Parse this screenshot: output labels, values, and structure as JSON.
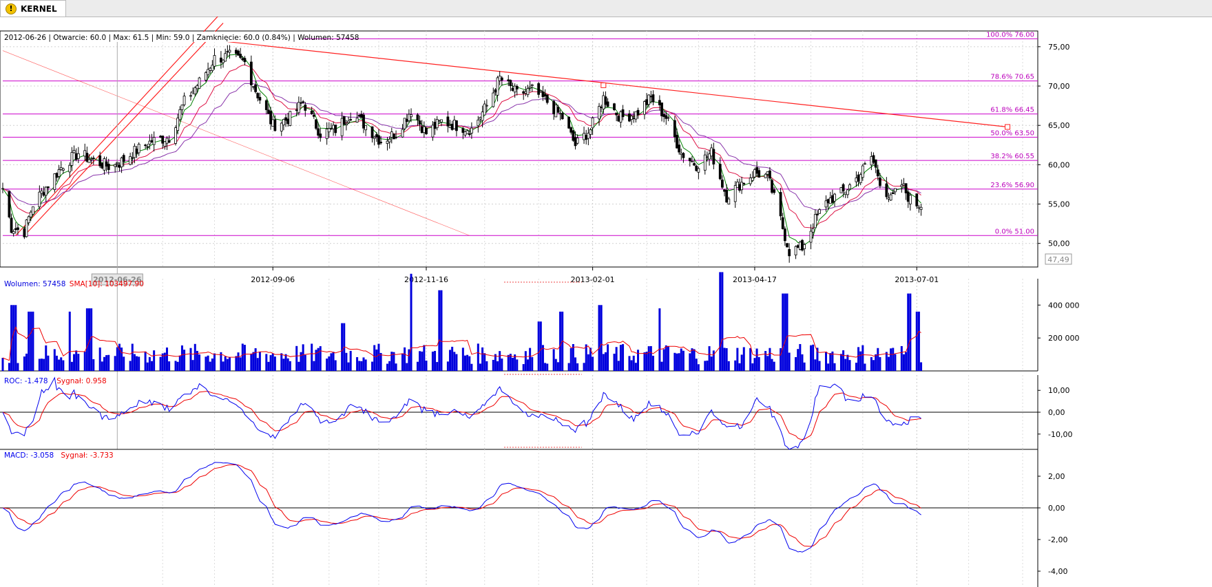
{
  "tab": {
    "title": "KERNEL",
    "icon": "warning-icon"
  },
  "colors": {
    "candle": "#000000",
    "fib_line": "#cc00cc",
    "fib_text": "#bb00bb",
    "trend_line": "#ff2020",
    "ema_short": "#008000",
    "ema_mid": "#dd1144",
    "ema_long": "#8833aa",
    "volume_bar": "#0000dd",
    "volume_sma": "#ee0000",
    "roc": "#0000ee",
    "roc_signal": "#ee0000",
    "macd": "#0000ee",
    "macd_signal": "#ee0000"
  },
  "chart_data": [
    {
      "type": "candlestick",
      "name": "price",
      "info": "2012-06-26 | Otwarcie: 60.0 | Max: 61.5 | Min: 59.0 | Zamknięcie: 60.0 (0.84%)  | Wolumen: 57458",
      "ylim": [
        47,
        77
      ],
      "yticks": [
        50,
        55,
        60,
        65,
        70,
        75
      ],
      "ytick_labels": [
        "50,00",
        "55,00",
        "60,00",
        "65,00",
        "70,00",
        "75,00"
      ],
      "last_price_label": "47,49",
      "x_range_days": [
        "2012-05-04",
        "2013-08-26"
      ],
      "date_labels": [
        {
          "date": "2012-09-06",
          "label": "2012-09-06"
        },
        {
          "date": "2012-11-16",
          "label": "2012-11-16"
        },
        {
          "date": "2013-02-01",
          "label": "2013-02-01"
        },
        {
          "date": "2013-04-17",
          "label": "2013-04-17"
        },
        {
          "date": "2013-07-01",
          "label": "2013-07-01"
        }
      ],
      "cursor": {
        "date": "2012-06-26",
        "label": "2012-06-26"
      },
      "fib_levels": [
        {
          "label": "100.0% 76.00",
          "value": 76.0
        },
        {
          "label": "78.6% 70.65",
          "value": 70.65
        },
        {
          "label": "61.8% 66.45",
          "value": 66.45
        },
        {
          "label": "50.0% 63.50",
          "value": 63.5
        },
        {
          "label": "38.2% 60.55",
          "value": 60.55
        },
        {
          "label": "23.6% 56.90",
          "value": 56.9
        },
        {
          "label": "0.0% 51.00",
          "value": 51.0
        }
      ],
      "trend_lines": [
        {
          "from": [
            "2012-05-10",
            51.0
          ],
          "to": [
            "2012-08-12",
            79.0
          ],
          "style": "solid"
        },
        {
          "from": [
            "2012-05-14",
            51.0
          ],
          "to": [
            "2012-08-14",
            78.0
          ],
          "style": "solid"
        },
        {
          "from": [
            "2012-08-04",
            76.0
          ],
          "to": [
            "2013-08-12",
            64.8
          ],
          "style": "solid",
          "handles": true
        },
        {
          "from": [
            "2012-05-04",
            74.5
          ],
          "to": [
            "2012-12-06",
            51.0
          ],
          "style": "thin"
        }
      ],
      "handle_points": [
        [
          "2012-08-04",
          76.0
        ],
        [
          "2013-02-06",
          70.1
        ],
        [
          "2013-08-12",
          64.8
        ]
      ],
      "path_points": [
        [
          "2012-05-04",
          57.0
        ],
        [
          "2012-05-08",
          52.0
        ],
        [
          "2012-05-14",
          51.5
        ],
        [
          "2012-05-18",
          55.0
        ],
        [
          "2012-05-25",
          57.5
        ],
        [
          "2012-06-01",
          60.0
        ],
        [
          "2012-06-08",
          61.5
        ],
        [
          "2012-06-15",
          60.5
        ],
        [
          "2012-06-22",
          59.8
        ],
        [
          "2012-06-26",
          60.0
        ],
        [
          "2012-07-03",
          61.5
        ],
        [
          "2012-07-12",
          63.0
        ],
        [
          "2012-07-20",
          63.5
        ],
        [
          "2012-07-27",
          68.0
        ],
        [
          "2012-08-03",
          70.5
        ],
        [
          "2012-08-10",
          73.5
        ],
        [
          "2012-08-17",
          73.8
        ],
        [
          "2012-08-24",
          73.0
        ],
        [
          "2012-08-29",
          69.5
        ],
        [
          "2012-09-06",
          65.0
        ],
        [
          "2012-09-14",
          66.0
        ],
        [
          "2012-09-20",
          68.0
        ],
        [
          "2012-09-28",
          64.0
        ],
        [
          "2012-10-05",
          64.5
        ],
        [
          "2012-10-12",
          66.5
        ],
        [
          "2012-10-19",
          65.0
        ],
        [
          "2012-10-26",
          63.0
        ],
        [
          "2012-11-02",
          64.0
        ],
        [
          "2012-11-09",
          67.0
        ],
        [
          "2012-11-16",
          64.0
        ],
        [
          "2012-11-23",
          65.5
        ],
        [
          "2012-11-30",
          65.0
        ],
        [
          "2012-12-07",
          64.5
        ],
        [
          "2012-12-14",
          67.5
        ],
        [
          "2012-12-20",
          71.0
        ],
        [
          "2012-12-28",
          69.0
        ],
        [
          "2013-01-04",
          69.5
        ],
        [
          "2013-01-11",
          68.0
        ],
        [
          "2013-01-18",
          66.0
        ],
        [
          "2013-01-24",
          62.5
        ],
        [
          "2013-01-31",
          64.5
        ],
        [
          "2013-02-06",
          68.5
        ],
        [
          "2013-02-14",
          66.0
        ],
        [
          "2013-02-21",
          66.5
        ],
        [
          "2013-02-28",
          68.5
        ],
        [
          "2013-03-07",
          66.0
        ],
        [
          "2013-03-14",
          61.5
        ],
        [
          "2013-03-21",
          60.0
        ],
        [
          "2013-03-28",
          61.5
        ],
        [
          "2013-04-04",
          56.0
        ],
        [
          "2013-04-10",
          57.5
        ],
        [
          "2013-04-17",
          59.0
        ],
        [
          "2013-04-23",
          58.5
        ],
        [
          "2013-04-29",
          53.0
        ],
        [
          "2013-05-03",
          49.0
        ],
        [
          "2013-05-09",
          49.5
        ],
        [
          "2013-05-15",
          53.0
        ],
        [
          "2013-05-21",
          55.5
        ],
        [
          "2013-05-28",
          56.5
        ],
        [
          "2013-06-04",
          58.5
        ],
        [
          "2013-06-10",
          61.0
        ],
        [
          "2013-06-14",
          58.0
        ],
        [
          "2013-06-19",
          55.5
        ],
        [
          "2013-06-24",
          57.5
        ],
        [
          "2013-06-28",
          55.5
        ],
        [
          "2013-07-01",
          55.0
        ]
      ]
    },
    {
      "type": "bar",
      "name": "volume",
      "legend": [
        {
          "label": "Wolumen: 57458",
          "color": "#0000dd"
        },
        {
          "label": "SMA[10]: 103497.90",
          "color": "#ee0000"
        }
      ],
      "ylim": [
        0,
        560000
      ],
      "yticks": [
        200000,
        400000
      ],
      "ytick_labels": [
        "200 000",
        "400 000"
      ],
      "base_level": 90000,
      "spikes": [
        [
          "2012-05-09",
          400000
        ],
        [
          "2012-05-17",
          360000
        ],
        [
          "2012-06-03",
          360000
        ],
        [
          "2012-06-13",
          380000
        ],
        [
          "2012-10-08",
          290000
        ],
        [
          "2012-11-10",
          590000
        ],
        [
          "2012-11-23",
          490000
        ],
        [
          "2013-01-07",
          300000
        ],
        [
          "2013-01-18",
          360000
        ],
        [
          "2013-02-04",
          400000
        ],
        [
          "2013-03-03",
          380000
        ],
        [
          "2013-04-01",
          600000
        ],
        [
          "2013-05-01",
          470000
        ],
        [
          "2013-06-28",
          470000
        ],
        [
          "2013-07-01",
          360000
        ]
      ]
    },
    {
      "type": "line",
      "name": "ROC",
      "legend": [
        {
          "label": "ROC: -1.478",
          "color": "#0000ee"
        },
        {
          "label": "Sygnał: 0.958",
          "color": "#ee0000"
        }
      ],
      "ylim": [
        -17,
        17
      ],
      "yticks": [
        -10,
        0,
        10
      ],
      "ytick_labels": [
        "-10,00",
        "0,00",
        "10,00"
      ]
    },
    {
      "type": "line",
      "name": "MACD",
      "legend": [
        {
          "label": "MACD: -3.058",
          "color": "#0000ee"
        },
        {
          "label": "Sygnał: -3.733",
          "color": "#ee0000"
        }
      ],
      "ylim": [
        -5,
        3
      ],
      "yticks": [
        -4,
        -2,
        0,
        2
      ],
      "ytick_labels": [
        "-4,00",
        "-2,00",
        "0,00",
        "2,00"
      ]
    }
  ]
}
